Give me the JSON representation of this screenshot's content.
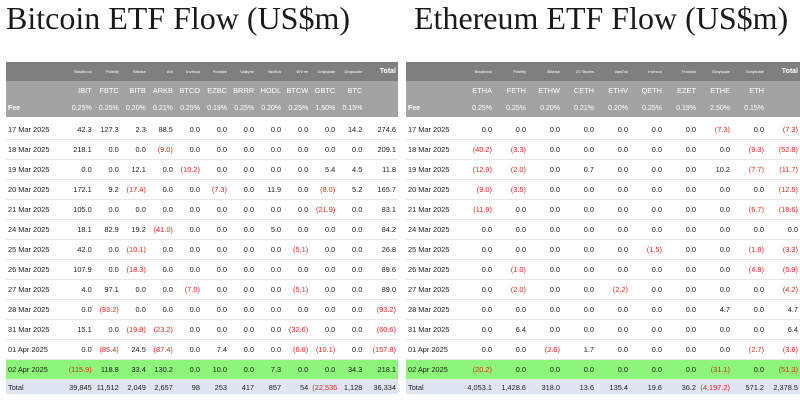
{
  "btc": {
    "title": "Bitcoin ETF Flow (US$m)",
    "issuers": [
      "Blackrock",
      "Fidelity",
      "Bitwise",
      "Ark",
      "Invesco",
      "Franklin",
      "Valkyrie",
      "VanEck",
      "WTree",
      "Grayscale",
      "Grayscale",
      "Total"
    ],
    "tickers": [
      "IBIT",
      "FBTC",
      "BITB",
      "ARKB",
      "BTCO",
      "EZBC",
      "BRRR",
      "HODL",
      "BTCW",
      "GBTC",
      "BTC",
      ""
    ],
    "fee_label": "Fee",
    "fees": [
      "0.25%",
      "0.25%",
      "0.20%",
      "0.21%",
      "0.25%",
      "0.19%",
      "0.25%",
      "0.20%",
      "0.25%",
      "1.50%",
      "0.15%",
      ""
    ],
    "rows": [
      {
        "date": "17 Mar 2025",
        "values": [
          "42.3",
          "127.3",
          "2.3",
          "88.5",
          "0.0",
          "0.0",
          "0.0",
          "0.0",
          "0.0",
          "0.0",
          "14.2",
          "274.6"
        ]
      },
      {
        "date": "18 Mar 2025",
        "values": [
          "218.1",
          "0.0",
          "0.0",
          "(9.0)",
          "0.0",
          "0.0",
          "0.0",
          "0.0",
          "0.0",
          "0.0",
          "0.0",
          "209.1"
        ]
      },
      {
        "date": "19 Mar 2025",
        "values": [
          "0.0",
          "0.0",
          "12.1",
          "0.0",
          "(10.2)",
          "0.0",
          "0.0",
          "0.0",
          "0.0",
          "5.4",
          "4.5",
          "11.8"
        ]
      },
      {
        "date": "20 Mar 2025",
        "values": [
          "172.1",
          "9.2",
          "(17.4)",
          "0.0",
          "0.0",
          "(7.3)",
          "0.0",
          "11.9",
          "0.0",
          "(8.0)",
          "5.2",
          "165.7"
        ]
      },
      {
        "date": "21 Mar 2025",
        "values": [
          "105.0",
          "0.0",
          "0.0",
          "0.0",
          "0.0",
          "0.0",
          "0.0",
          "0.0",
          "0.0",
          "(21.9)",
          "0.0",
          "83.1"
        ]
      },
      {
        "date": "24 Mar 2025",
        "values": [
          "18.1",
          "82.9",
          "19.2",
          "(41.0)",
          "0.0",
          "0.0",
          "0.0",
          "5.0",
          "0.0",
          "0.0",
          "0.0",
          "84.2"
        ]
      },
      {
        "date": "25 Mar 2025",
        "values": [
          "42.0",
          "0.0",
          "(10.1)",
          "0.0",
          "0.0",
          "0.0",
          "0.0",
          "0.0",
          "(5.1)",
          "0.0",
          "0.0",
          "26.8"
        ]
      },
      {
        "date": "26 Mar 2025",
        "values": [
          "107.9",
          "0.0",
          "(18.3)",
          "0.0",
          "0.0",
          "0.0",
          "0.0",
          "0.0",
          "0.0",
          "0.0",
          "0.0",
          "89.6"
        ]
      },
      {
        "date": "27 Mar 2025",
        "values": [
          "4.0",
          "97.1",
          "0.0",
          "0.0",
          "(7.0)",
          "0.0",
          "0.0",
          "0.0",
          "(5.1)",
          "0.0",
          "0.0",
          "89.0"
        ]
      },
      {
        "date": "28 Mar 2025",
        "values": [
          "0.0",
          "(93.2)",
          "0.0",
          "0.0",
          "0.0",
          "0.0",
          "0.0",
          "0.0",
          "0.0",
          "0.0",
          "0.0",
          "(93.2)"
        ]
      },
      {
        "date": "31 Mar 2025",
        "values": [
          "15.1",
          "0.0",
          "(19.9)",
          "(23.2)",
          "0.0",
          "0.0",
          "0.0",
          "0.0",
          "(32.6)",
          "0.0",
          "0.0",
          "(60.6)"
        ]
      },
      {
        "date": "01 Apr 2025",
        "values": [
          "0.0",
          "(85.4)",
          "24.5",
          "(87.4)",
          "0.0",
          "7.4",
          "0.0",
          "0.0",
          "(6.8)",
          "(10.1)",
          "0.0",
          "(157.8)"
        ]
      },
      {
        "date": "02 Apr 2025",
        "values": [
          "(115.9)",
          "118.8",
          "33.4",
          "130.2",
          "0.0",
          "10.0",
          "0.0",
          "7.3",
          "0.0",
          "0.0",
          "34.3",
          "218.1"
        ],
        "highlight": true
      }
    ],
    "totals": {
      "label": "Total",
      "values": [
        "39,845",
        "11,512",
        "2,049",
        "2,657",
        "98",
        "253",
        "417",
        "857",
        "54",
        "(22,536)",
        "1,128",
        "36,334"
      ]
    }
  },
  "eth": {
    "title": "Ethereum ETF Flow (US$m)",
    "issuers": [
      "Blackrock",
      "Fidelity",
      "Bitwise",
      "21 Shares",
      "VanEck",
      "Invesco",
      "Franklin",
      "Grayscale",
      "Grayscale",
      "Total"
    ],
    "tickers": [
      "ETHA",
      "FETH",
      "ETHW",
      "CETH",
      "ETHV",
      "QETH",
      "EZET",
      "ETHE",
      "ETH",
      ""
    ],
    "fee_label": "Fee",
    "fees": [
      "0.25%",
      "0.25%",
      "0.20%",
      "0.21%",
      "0.20%",
      "0.25%",
      "0.19%",
      "2.50%",
      "0.15%",
      ""
    ],
    "rows": [
      {
        "date": "17 Mar 2025",
        "values": [
          "0.0",
          "0.0",
          "0.0",
          "0.0",
          "0.0",
          "0.0",
          "0.0",
          "(7.3)",
          "0.0",
          "(7.3)"
        ]
      },
      {
        "date": "18 Mar 2025",
        "values": [
          "(40.2)",
          "(3.3)",
          "0.0",
          "0.0",
          "0.0",
          "0.0",
          "0.0",
          "0.0",
          "(9.3)",
          "(52.8)"
        ]
      },
      {
        "date": "19 Mar 2025",
        "values": [
          "(12.9)",
          "(2.0)",
          "0.0",
          "0.7",
          "0.0",
          "0.0",
          "0.0",
          "10.2",
          "(7.7)",
          "(11.7)"
        ]
      },
      {
        "date": "20 Mar 2025",
        "values": [
          "(9.0)",
          "(3.5)",
          "0.0",
          "0.0",
          "0.0",
          "0.0",
          "0.0",
          "0.0",
          "0.0",
          "(12.5)"
        ]
      },
      {
        "date": "21 Mar 2025",
        "values": [
          "(11.9)",
          "0.0",
          "0.0",
          "0.0",
          "0.0",
          "0.0",
          "0.0",
          "0.0",
          "(6.7)",
          "(18.6)"
        ]
      },
      {
        "date": "24 Mar 2025",
        "values": [
          "0.0",
          "0.0",
          "0.0",
          "0.0",
          "0.0",
          "0.0",
          "0.0",
          "0.0",
          "0.0",
          "0.0"
        ]
      },
      {
        "date": "25 Mar 2025",
        "values": [
          "0.0",
          "0.0",
          "0.0",
          "0.0",
          "0.0",
          "(1.5)",
          "0.0",
          "0.0",
          "(1.8)",
          "(3.3)"
        ]
      },
      {
        "date": "26 Mar 2025",
        "values": [
          "0.0",
          "(1.0)",
          "0.0",
          "0.0",
          "0.0",
          "0.0",
          "0.0",
          "0.0",
          "(4.9)",
          "(5.9)"
        ]
      },
      {
        "date": "27 Mar 2025",
        "values": [
          "0.0",
          "(2.0)",
          "0.0",
          "0.0",
          "(2.2)",
          "0.0",
          "0.0",
          "0.0",
          "0.0",
          "(4.2)"
        ]
      },
      {
        "date": "28 Mar 2025",
        "values": [
          "0.0",
          "0.0",
          "0.0",
          "0.0",
          "0.0",
          "0.0",
          "0.0",
          "4.7",
          "0.0",
          "4.7"
        ]
      },
      {
        "date": "31 Mar 2025",
        "values": [
          "0.0",
          "6.4",
          "0.0",
          "0.0",
          "0.0",
          "0.0",
          "0.0",
          "0.0",
          "0.0",
          "6.4"
        ]
      },
      {
        "date": "01 Apr 2025",
        "values": [
          "0.0",
          "0.0",
          "(2.6)",
          "1.7",
          "0.0",
          "0.0",
          "0.0",
          "0.0",
          "(2.7)",
          "(3.6)"
        ]
      },
      {
        "date": "02 Apr 2025",
        "values": [
          "(20.2)",
          "0.0",
          "0.0",
          "0.0",
          "0.0",
          "0.0",
          "0.0",
          "(31.1)",
          "0.0",
          "(51.3)"
        ],
        "highlight": true
      }
    ],
    "totals": {
      "label": "Total",
      "values": [
        "4,053.1",
        "1,428.6",
        "318.0",
        "13.6",
        "135.4",
        "19.6",
        "36.2",
        "(4,197.2)",
        "571.2",
        "2,378.5"
      ]
    }
  }
}
